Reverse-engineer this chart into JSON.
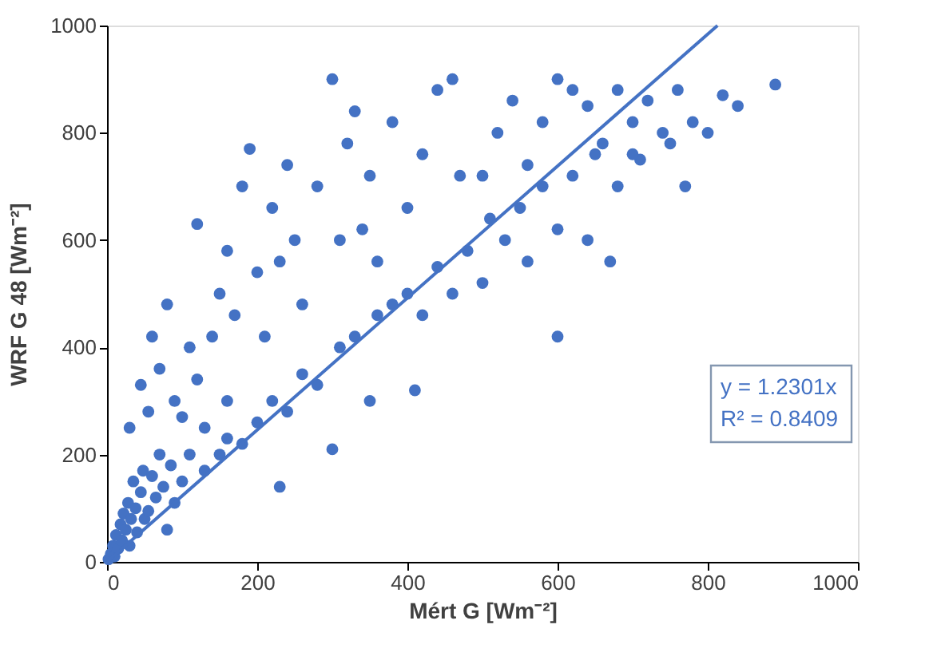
{
  "chart_data": {
    "type": "scatter",
    "xlabel": "Mért G [Wm⁻²]",
    "ylabel": "WRF G 48 [Wm⁻²]",
    "xlim": [
      0,
      1000
    ],
    "ylim": [
      0,
      1000
    ],
    "xticks": [
      0,
      200,
      400,
      600,
      800,
      1000
    ],
    "yticks": [
      0,
      200,
      400,
      600,
      800,
      1000
    ],
    "grid": false,
    "legend": false,
    "annotations": [
      "y = 1.2301x",
      "R² = 0.8409"
    ],
    "series": [
      {
        "color": "#4472c4",
        "marker": "circle",
        "x": [
          2,
          5,
          8,
          10,
          12,
          15,
          18,
          20,
          22,
          25,
          28,
          30,
          32,
          35,
          38,
          40,
          45,
          48,
          50,
          55,
          60,
          65,
          70,
          75,
          80,
          85,
          90,
          30,
          45,
          55,
          60,
          70,
          80,
          90,
          100,
          110,
          120,
          120,
          130,
          140,
          150,
          160,
          160,
          170,
          180,
          190,
          200,
          210,
          220,
          230,
          240,
          250,
          260,
          280,
          300,
          310,
          320,
          330,
          340,
          350,
          360,
          380,
          400,
          420,
          440,
          460,
          470,
          100,
          110,
          130,
          150,
          160,
          180,
          200,
          220,
          230,
          240,
          260,
          280,
          300,
          310,
          330,
          350,
          360,
          380,
          400,
          410,
          420,
          440,
          460,
          480,
          500,
          510,
          530,
          550,
          560,
          580,
          600,
          600,
          620,
          640,
          660,
          670,
          680,
          700,
          710,
          720,
          740,
          750,
          760,
          770,
          780,
          800,
          820,
          840,
          890,
          500,
          520,
          540,
          560,
          580,
          600,
          620,
          640,
          650,
          680,
          700
        ],
        "values": [
          5,
          15,
          30,
          10,
          50,
          25,
          70,
          40,
          90,
          60,
          110,
          30,
          80,
          150,
          100,
          55,
          130,
          170,
          80,
          95,
          160,
          120,
          200,
          140,
          60,
          180,
          110,
          250,
          330,
          280,
          420,
          360,
          480,
          300,
          270,
          400,
          630,
          340,
          250,
          420,
          500,
          580,
          300,
          460,
          700,
          770,
          540,
          420,
          660,
          560,
          740,
          600,
          480,
          700,
          900,
          600,
          780,
          840,
          620,
          720,
          560,
          820,
          660,
          760,
          880,
          900,
          720,
          150,
          200,
          170,
          200,
          230,
          220,
          260,
          300,
          140,
          280,
          350,
          330,
          210,
          400,
          420,
          300,
          460,
          480,
          500,
          320,
          460,
          550,
          500,
          580,
          520,
          640,
          600,
          660,
          560,
          700,
          420,
          620,
          720,
          600,
          780,
          560,
          700,
          820,
          750,
          860,
          800,
          780,
          880,
          700,
          820,
          800,
          870,
          850,
          890,
          720,
          800,
          860,
          740,
          820,
          900,
          880,
          850,
          760,
          880,
          760
        ]
      },
      {
        "type": "line",
        "color": "#4472c4",
        "line_style": "solid",
        "marker": "none",
        "x": [
          0,
          813
        ],
        "values": [
          0,
          1000
        ]
      }
    ]
  }
}
